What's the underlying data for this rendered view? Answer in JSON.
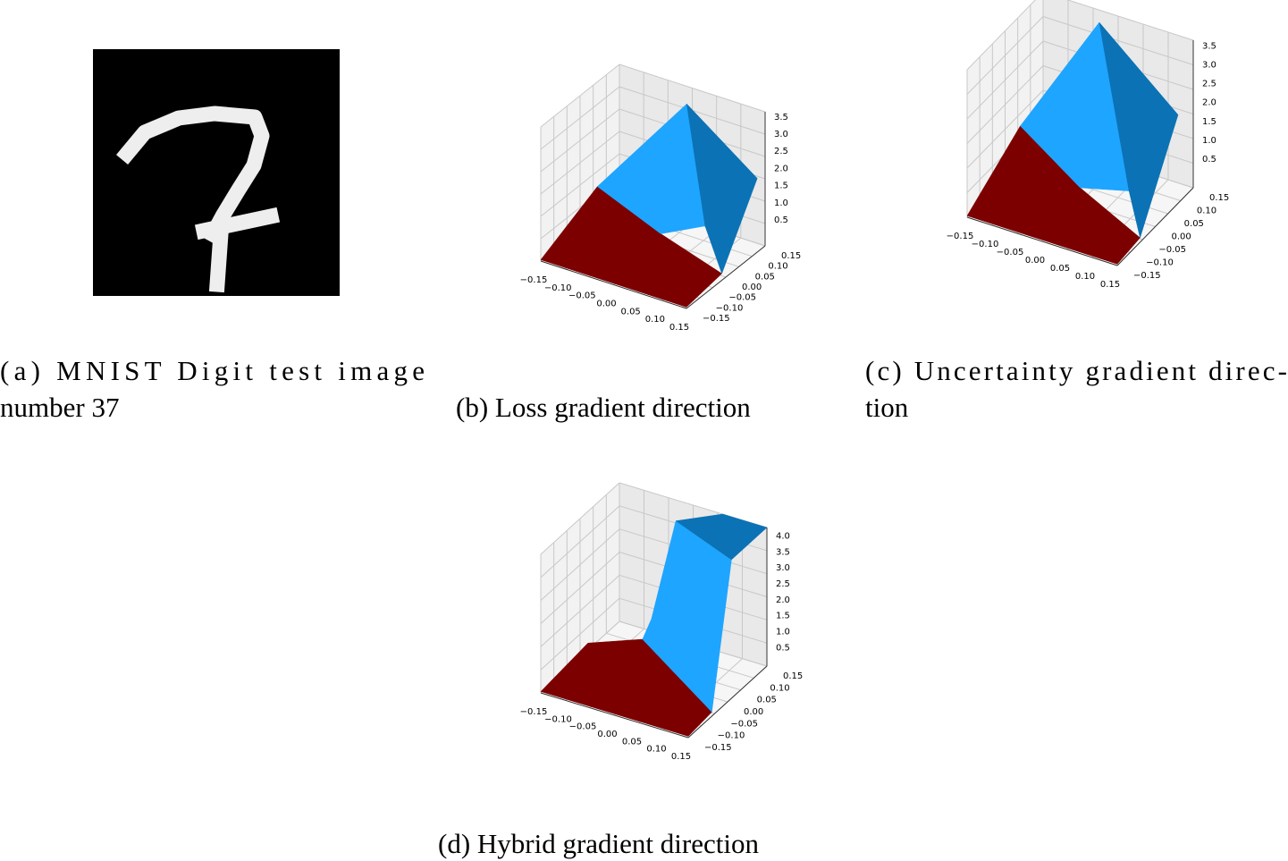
{
  "figure": {
    "panels": [
      {
        "caption": [
          "(a)  MNIST  Digit  test  image",
          "number 37"
        ]
      },
      {
        "caption": [
          "(b) Loss gradient direction"
        ],
        "xticks": [
          "−0.15",
          "−0.10",
          "−0.05",
          "0.00",
          "0.05",
          "0.10",
          "0.15"
        ],
        "yticks": [
          "−0.15",
          "−0.10",
          "−0.05",
          "0.00",
          "0.05",
          "0.10",
          "0.15"
        ],
        "zticks": [
          "0.5",
          "1.0",
          "1.5",
          "2.0",
          "2.5",
          "3.0",
          "3.5"
        ]
      },
      {
        "caption": [
          "(c) Uncertainty gradient direc-",
          "tion"
        ],
        "xticks": [
          "−0.15",
          "−0.10",
          "−0.05",
          "0.00",
          "0.05",
          "0.10",
          "0.15"
        ],
        "yticks": [
          "−0.15",
          "−0.10",
          "−0.05",
          "0.00",
          "0.05",
          "0.10",
          "0.15"
        ],
        "zticks": [
          "0.5",
          "1.0",
          "1.5",
          "2.0",
          "2.5",
          "3.0",
          "3.5"
        ]
      },
      {
        "caption": [
          "(d) Hybrid gradient direction"
        ],
        "xticks": [
          "−0.15",
          "−0.10",
          "−0.05",
          "0.00",
          "0.05",
          "0.10",
          "0.15"
        ],
        "yticks": [
          "−0.15",
          "−0.10",
          "−0.05",
          "0.00",
          "0.05",
          "0.10",
          "0.15"
        ],
        "zticks": [
          "0.5",
          "1.0",
          "1.5",
          "2.0",
          "2.5",
          "3.0",
          "3.5",
          "4.0"
        ]
      }
    ]
  }
}
